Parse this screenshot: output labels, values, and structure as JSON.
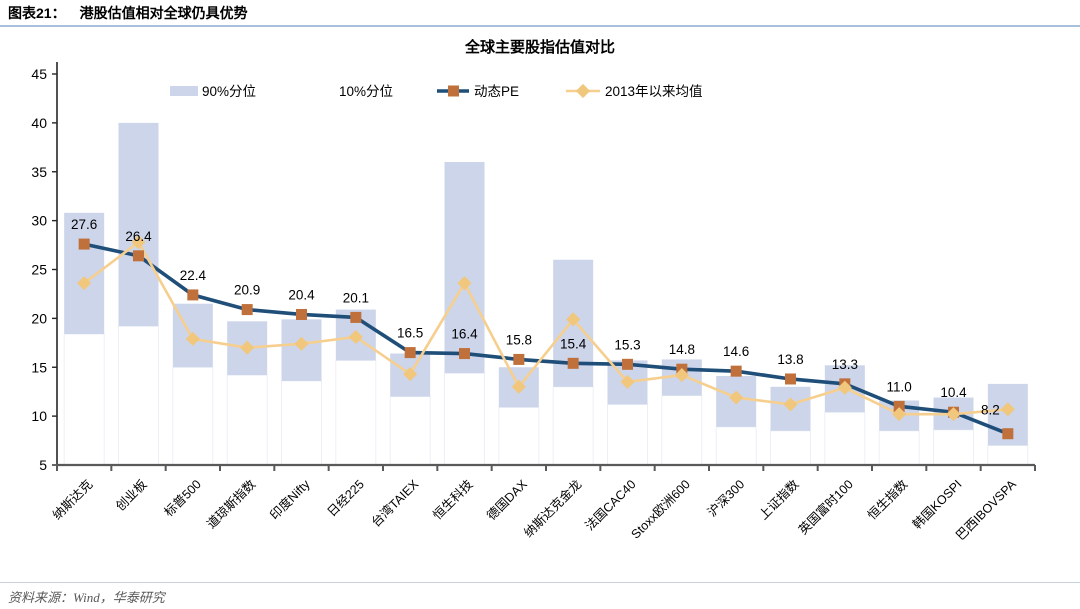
{
  "header": {
    "figure_label": "图表21：",
    "figure_title": "港股估值相对全球仍具优势"
  },
  "footer": {
    "source": "资料来源：Wind，华泰研究"
  },
  "chart_data": {
    "type": "combo (floating range bars + 2 line series)",
    "title": "全球主要股指估值对比",
    "categories": [
      "纳斯达克",
      "创业板",
      "标普500",
      "道琼斯指数",
      "印度Nifty",
      "日经225",
      "台湾TAIEX",
      "恒生科技",
      "德国DAX",
      "纳斯达克金龙",
      "法国CAC40",
      "Stoxx欧洲600",
      "沪深300",
      "上证指数",
      "英国富时100",
      "恒生指数",
      "韩国KOSPI",
      "巴西IBOVSPA"
    ],
    "series": [
      {
        "name": "90%分位",
        "type": "range_top",
        "values": [
          30.8,
          40.0,
          21.5,
          19.7,
          19.9,
          20.9,
          16.4,
          36.0,
          15.0,
          26.0,
          15.7,
          15.8,
          14.1,
          13.0,
          15.2,
          11.6,
          11.9,
          13.3
        ]
      },
      {
        "name": "10%分位",
        "type": "range_bottom",
        "values": [
          18.4,
          19.2,
          15.0,
          14.2,
          13.6,
          15.7,
          12.0,
          14.4,
          10.9,
          13.0,
          11.2,
          12.1,
          8.9,
          8.5,
          10.4,
          8.5,
          8.6,
          7.0
        ]
      },
      {
        "name": "动态PE",
        "type": "line_square",
        "labeled": true,
        "values": [
          27.6,
          26.4,
          22.4,
          20.9,
          20.4,
          20.1,
          16.5,
          16.4,
          15.8,
          15.4,
          15.3,
          14.8,
          14.6,
          13.8,
          13.3,
          11.0,
          10.4,
          8.2
        ]
      },
      {
        "name": "2013年以来均值",
        "type": "line_diamond",
        "values": [
          23.6,
          27.8,
          17.9,
          17.0,
          17.4,
          18.1,
          14.3,
          23.6,
          13.0,
          19.9,
          13.5,
          14.2,
          11.9,
          11.2,
          12.9,
          10.2,
          10.2,
          10.7
        ]
      }
    ],
    "pe_point_labels": [
      "27.6",
      "26.4",
      "22.4",
      "20.9",
      "20.4",
      "20.1",
      "16.5",
      "16.4",
      "15.8",
      "15.4",
      "15.3",
      "14.8",
      "14.6",
      "13.8",
      "13.3",
      "11.0",
      "10.4",
      "8.2"
    ],
    "ylim": [
      5,
      45
    ],
    "yticks": [
      45,
      40,
      35,
      30,
      25,
      20,
      15,
      10,
      5
    ],
    "grid": "faint vertical column guides only",
    "legend_position": "top",
    "colors": {
      "range_bar": "#ccd5ea",
      "under_bar_edge": "#eceff6",
      "pe_line": "#1f4e79",
      "pe_marker": "#c0703a",
      "mean_line": "#f6cf8f",
      "mean_marker": "#f1c77e",
      "axis": "#595959",
      "text": "#000000"
    }
  }
}
